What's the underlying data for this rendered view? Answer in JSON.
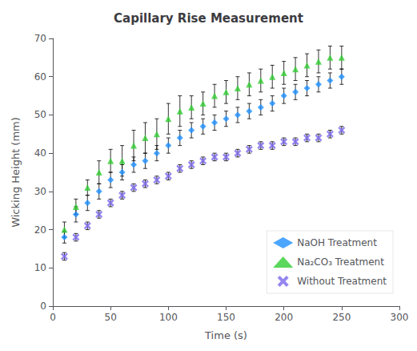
{
  "chart_data": {
    "type": "scatter",
    "title": "Capillary Rise Measurement",
    "xlabel": "Time (s)",
    "ylabel": "Wicking Height (mm)",
    "xlim": [
      0,
      300
    ],
    "ylim": [
      0,
      70
    ],
    "xticks": [
      0,
      50,
      100,
      150,
      200,
      250,
      300
    ],
    "yticks": [
      0,
      10,
      20,
      30,
      40,
      50,
      60,
      70
    ],
    "grid": false,
    "legend": "lower right",
    "x": [
      10,
      20,
      30,
      40,
      50,
      60,
      70,
      80,
      90,
      100,
      110,
      120,
      130,
      140,
      150,
      160,
      170,
      180,
      190,
      200,
      210,
      220,
      230,
      240,
      250
    ],
    "series": [
      {
        "name": "NaOH Treatment",
        "color": "#1E90FF",
        "marker": "diamond",
        "values": [
          18,
          24,
          27,
          30,
          33,
          35,
          37,
          38,
          40,
          42,
          44,
          46,
          47,
          48,
          49,
          50,
          51,
          52,
          53,
          55,
          56,
          57,
          58,
          59,
          60
        ],
        "yerr": [
          1.5,
          2,
          2,
          2,
          2,
          2,
          2,
          2,
          2,
          2,
          2,
          2,
          2,
          2,
          2,
          2,
          2,
          2,
          2,
          2,
          2,
          2,
          2,
          2,
          2
        ]
      },
      {
        "name": "Na₂CO₃ Treatment",
        "color": "#32CD32",
        "marker": "triangle",
        "values": [
          20,
          26,
          31,
          35,
          38,
          38,
          42,
          44,
          45,
          49,
          51,
          52,
          53,
          55,
          56,
          57,
          58,
          59,
          60,
          61,
          62,
          63,
          64,
          65,
          65
        ],
        "yerr": [
          2,
          2,
          2,
          3,
          3,
          4,
          4,
          4,
          4,
          4,
          4,
          3,
          3,
          3,
          3,
          3,
          3,
          3,
          3,
          3,
          3,
          3,
          3,
          3,
          3
        ]
      },
      {
        "name": "Without Treatment",
        "color": "#7B68EE",
        "marker": "x",
        "values": [
          13,
          18,
          21,
          24,
          27,
          29,
          31,
          32,
          33,
          34,
          36,
          37,
          38,
          39,
          39,
          40,
          41,
          42,
          42,
          43,
          43,
          44,
          44,
          45,
          46
        ],
        "yerr": [
          1,
          1,
          1,
          1,
          1,
          1,
          1,
          1,
          1,
          1,
          1,
          1,
          1,
          1,
          1,
          1,
          1,
          1,
          1,
          1,
          1,
          1,
          1,
          1,
          1
        ]
      }
    ]
  }
}
